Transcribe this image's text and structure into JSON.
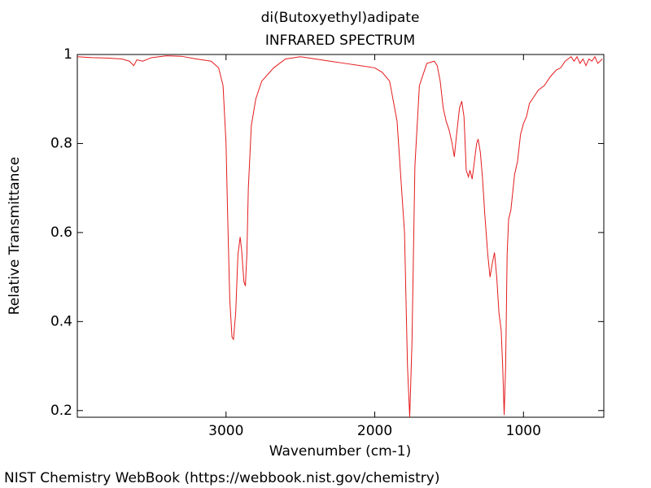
{
  "chart_data": {
    "type": "line",
    "title": "di(Butoxyethyl)adipate",
    "subtitle": "INFRARED SPECTRUM",
    "x_label": "Wavenumber (cm-1)",
    "y_label": "Relative Transmittance",
    "footer": "NIST Chemistry WebBook (https://webbook.nist.gov/chemistry)",
    "xlim": [
      4000,
      460
    ],
    "ylim": [
      0.185,
      1.0
    ],
    "xticks": [
      3000,
      2000,
      1000
    ],
    "yticks": [
      0.2,
      0.4,
      0.6,
      0.8,
      1
    ],
    "x": [
      4000,
      3900,
      3800,
      3700,
      3650,
      3620,
      3600,
      3560,
      3500,
      3400,
      3300,
      3200,
      3100,
      3050,
      3020,
      3000,
      2990,
      2975,
      2960,
      2950,
      2935,
      2920,
      2905,
      2895,
      2880,
      2870,
      2860,
      2850,
      2830,
      2800,
      2760,
      2720,
      2680,
      2600,
      2500,
      2400,
      2300,
      2200,
      2100,
      2000,
      1950,
      1900,
      1850,
      1800,
      1780,
      1765,
      1750,
      1730,
      1700,
      1650,
      1600,
      1580,
      1560,
      1540,
      1520,
      1500,
      1480,
      1465,
      1450,
      1430,
      1415,
      1400,
      1385,
      1370,
      1360,
      1345,
      1330,
      1315,
      1305,
      1290,
      1275,
      1260,
      1240,
      1225,
      1210,
      1195,
      1180,
      1165,
      1150,
      1140,
      1130,
      1120,
      1110,
      1100,
      1085,
      1060,
      1040,
      1020,
      1000,
      980,
      960,
      930,
      900,
      860,
      820,
      780,
      750,
      720,
      700,
      680,
      660,
      640,
      620,
      600,
      580,
      560,
      540,
      520,
      500,
      470
    ],
    "series": [
      {
        "name": "di(Butoxyethyl)adipate",
        "color": "#e41a1c",
        "values": [
          0.995,
          0.993,
          0.992,
          0.99,
          0.985,
          0.975,
          0.988,
          0.985,
          0.993,
          0.997,
          0.996,
          0.99,
          0.985,
          0.97,
          0.93,
          0.8,
          0.65,
          0.45,
          0.365,
          0.36,
          0.42,
          0.55,
          0.59,
          0.56,
          0.49,
          0.48,
          0.55,
          0.7,
          0.84,
          0.9,
          0.94,
          0.955,
          0.97,
          0.99,
          0.995,
          0.99,
          0.985,
          0.98,
          0.975,
          0.97,
          0.96,
          0.94,
          0.85,
          0.6,
          0.3,
          0.185,
          0.35,
          0.75,
          0.93,
          0.98,
          0.985,
          0.975,
          0.94,
          0.88,
          0.85,
          0.83,
          0.8,
          0.77,
          0.82,
          0.88,
          0.895,
          0.86,
          0.74,
          0.725,
          0.74,
          0.72,
          0.76,
          0.8,
          0.81,
          0.78,
          0.72,
          0.64,
          0.55,
          0.5,
          0.53,
          0.555,
          0.5,
          0.42,
          0.38,
          0.3,
          0.19,
          0.3,
          0.55,
          0.63,
          0.65,
          0.73,
          0.76,
          0.82,
          0.845,
          0.86,
          0.89,
          0.905,
          0.92,
          0.93,
          0.95,
          0.965,
          0.97,
          0.985,
          0.99,
          0.995,
          0.985,
          0.995,
          0.98,
          0.99,
          0.975,
          0.99,
          0.985,
          0.995,
          0.98,
          0.99
        ]
      }
    ]
  }
}
